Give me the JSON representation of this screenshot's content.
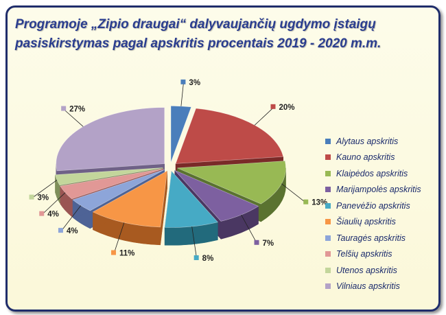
{
  "chart_data": {
    "type": "pie",
    "variant": "3d-exploded",
    "title": "Programoje „Zipio draugai“ dalyvaujančių ugdymo įstaigų pasiskirstymas pagal apskritis procentais 2019 - 2020 m.m.",
    "legend_position": "right",
    "categories": [
      "Alytaus apskritis",
      "Kauno apskritis",
      "Klaipėdos apskritis",
      "Marijampolės apskritis",
      "Panevėžio apskritis",
      "Šiaulių apskritis",
      "Tauragės apskritis",
      "Telšių apskritis",
      "Utenos apskritis",
      "Vilniaus apskritis"
    ],
    "values": [
      3,
      20,
      13,
      7,
      8,
      11,
      4,
      4,
      3,
      27
    ],
    "data_labels": [
      "3%",
      "20%",
      "13%",
      "7%",
      "8%",
      "11%",
      "4%",
      "4%",
      "3%",
      "27%"
    ],
    "colors": [
      "#4a7ebb",
      "#be4b48",
      "#98b954",
      "#7d60a0",
      "#46aac5",
      "#f79646",
      "#8da5d9",
      "#e19896",
      "#c3d69b",
      "#b3a2c7"
    ],
    "dark_colors": [
      "#2c4d75",
      "#7a2a28",
      "#5a7230",
      "#4a3762",
      "#226a7c",
      "#a85a20",
      "#4e6396",
      "#9a5553",
      "#7f8f5a",
      "#6f6187"
    ]
  }
}
